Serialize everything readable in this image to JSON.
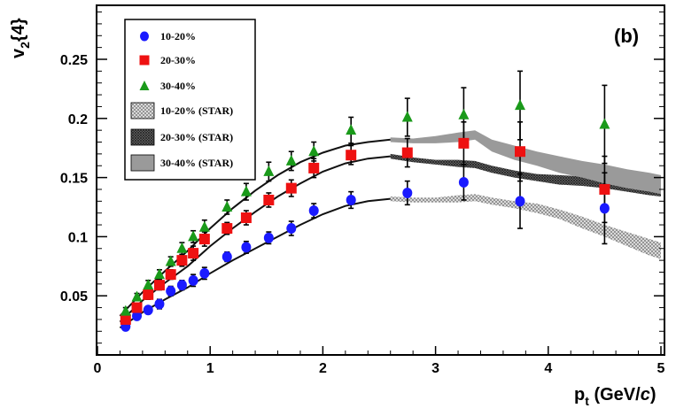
{
  "chart_data": {
    "type": "scatter",
    "panel_label": "(b)",
    "xlabel_main": "p",
    "xlabel_sub": "t",
    "xlabel_unit_pre": " (GeV/",
    "xlabel_unit_italic": "c",
    "xlabel_unit_post": ")",
    "ylabel_main": "v",
    "ylabel_sub": "2",
    "ylabel_post": "{4}",
    "xlim": [
      0,
      5
    ],
    "ylim": [
      0,
      0.3
    ],
    "x_ticks": [
      0,
      1,
      2,
      3,
      4,
      5
    ],
    "y_ticks": [
      0.05,
      0.1,
      0.15,
      0.2,
      0.25
    ],
    "x_tick_labels": [
      "0",
      "1",
      "2",
      "3",
      "4",
      "5"
    ],
    "y_tick_labels": [
      "0.05",
      "0.1",
      "0.15",
      "0.2",
      "0.25"
    ],
    "grid": false,
    "legend_placement": "top-left",
    "series": [
      {
        "name": "10-20%",
        "marker": "circle",
        "color": "#1a1aff",
        "x": [
          0.25,
          0.35,
          0.45,
          0.55,
          0.65,
          0.75,
          0.85,
          0.95,
          1.15,
          1.32,
          1.52,
          1.72,
          1.92,
          2.25,
          2.75,
          3.25,
          3.75,
          4.5
        ],
        "y": [
          0.024,
          0.033,
          0.038,
          0.043,
          0.054,
          0.059,
          0.063,
          0.069,
          0.083,
          0.091,
          0.099,
          0.107,
          0.122,
          0.131,
          0.137,
          0.146,
          0.13,
          0.124
        ],
        "err": [
          0.003,
          0.003,
          0.003,
          0.004,
          0.004,
          0.004,
          0.005,
          0.005,
          0.004,
          0.005,
          0.005,
          0.006,
          0.006,
          0.007,
          0.01,
          0.015,
          0.023,
          0.03
        ]
      },
      {
        "name": "20-30%",
        "marker": "square",
        "color": "#ee1111",
        "x": [
          0.25,
          0.35,
          0.45,
          0.55,
          0.65,
          0.75,
          0.85,
          0.95,
          1.15,
          1.32,
          1.52,
          1.72,
          1.92,
          2.25,
          2.75,
          3.25,
          3.75,
          4.5
        ],
        "y": [
          0.03,
          0.04,
          0.051,
          0.059,
          0.068,
          0.08,
          0.086,
          0.098,
          0.107,
          0.116,
          0.131,
          0.141,
          0.158,
          0.169,
          0.171,
          0.179,
          0.172,
          0.14
        ],
        "err": [
          0.003,
          0.003,
          0.004,
          0.004,
          0.004,
          0.005,
          0.006,
          0.006,
          0.005,
          0.006,
          0.006,
          0.007,
          0.008,
          0.008,
          0.012,
          0.018,
          0.025,
          0.028
        ]
      },
      {
        "name": "30-40%",
        "marker": "triangle",
        "color": "#1a9a1a",
        "x": [
          0.25,
          0.35,
          0.45,
          0.55,
          0.65,
          0.75,
          0.85,
          0.95,
          1.15,
          1.32,
          1.52,
          1.72,
          1.92,
          2.25,
          2.75,
          3.25,
          3.75,
          4.5
        ],
        "y": [
          0.037,
          0.049,
          0.059,
          0.068,
          0.079,
          0.09,
          0.1,
          0.108,
          0.125,
          0.138,
          0.155,
          0.164,
          0.172,
          0.19,
          0.201,
          0.203,
          0.211,
          0.195
        ],
        "err": [
          0.003,
          0.003,
          0.004,
          0.004,
          0.004,
          0.005,
          0.005,
          0.006,
          0.006,
          0.007,
          0.008,
          0.008,
          0.008,
          0.011,
          0.016,
          0.023,
          0.029,
          0.033
        ]
      }
    ],
    "bands": [
      {
        "name": "10-20% (STAR)",
        "fill": "#cccccc",
        "pattern": "crosshatch-light",
        "x": [
          2.6,
          2.8,
          3.0,
          3.2,
          3.35,
          3.5,
          3.7,
          3.9,
          4.1,
          4.3,
          4.5,
          4.7,
          4.9,
          5.0
        ],
        "y": [
          0.132,
          0.131,
          0.131,
          0.132,
          0.133,
          0.13,
          0.127,
          0.124,
          0.119,
          0.112,
          0.105,
          0.098,
          0.091,
          0.088
        ],
        "half_width": [
          0.002,
          0.002,
          0.002,
          0.003,
          0.003,
          0.003,
          0.003,
          0.004,
          0.004,
          0.005,
          0.005,
          0.006,
          0.007,
          0.007
        ]
      },
      {
        "name": "20-30% (STAR)",
        "fill": "#888888",
        "pattern": "crosshatch-dark",
        "x": [
          2.6,
          2.8,
          3.0,
          3.2,
          3.35,
          3.5,
          3.7,
          3.9,
          4.1,
          4.3,
          4.5,
          4.7,
          4.9,
          5.0
        ],
        "y": [
          0.168,
          0.165,
          0.163,
          0.162,
          0.161,
          0.157,
          0.153,
          0.15,
          0.148,
          0.147,
          0.145,
          0.143,
          0.14,
          0.139
        ],
        "half_width": [
          0.002,
          0.002,
          0.002,
          0.003,
          0.003,
          0.003,
          0.003,
          0.003,
          0.004,
          0.004,
          0.004,
          0.005,
          0.005,
          0.005
        ]
      },
      {
        "name": "30-40% (STAR)",
        "fill": "#999999",
        "pattern": "solid",
        "x": [
          2.6,
          2.8,
          3.0,
          3.2,
          3.35,
          3.5,
          3.7,
          3.9,
          4.1,
          4.3,
          4.5,
          4.7,
          4.9,
          5.0
        ],
        "y": [
          0.182,
          0.181,
          0.182,
          0.184,
          0.186,
          0.177,
          0.171,
          0.166,
          0.161,
          0.157,
          0.153,
          0.149,
          0.146,
          0.144
        ],
        "half_width": [
          0.002,
          0.002,
          0.003,
          0.004,
          0.004,
          0.005,
          0.006,
          0.006,
          0.007,
          0.007,
          0.008,
          0.008,
          0.008,
          0.008
        ]
      }
    ],
    "curves": [
      {
        "for": "10-20%",
        "x": [
          0.2,
          0.4,
          0.6,
          0.8,
          1.0,
          1.2,
          1.4,
          1.6,
          1.8,
          2.0,
          2.2,
          2.4,
          2.6
        ],
        "y": [
          0.023,
          0.036,
          0.047,
          0.057,
          0.069,
          0.08,
          0.09,
          0.1,
          0.11,
          0.119,
          0.126,
          0.13,
          0.132
        ]
      },
      {
        "for": "20-30%",
        "x": [
          0.2,
          0.4,
          0.6,
          0.8,
          1.0,
          1.2,
          1.4,
          1.6,
          1.8,
          2.0,
          2.2,
          2.4,
          2.6
        ],
        "y": [
          0.028,
          0.046,
          0.061,
          0.075,
          0.092,
          0.107,
          0.121,
          0.134,
          0.145,
          0.155,
          0.162,
          0.166,
          0.168
        ]
      },
      {
        "for": "30-40%",
        "x": [
          0.2,
          0.4,
          0.6,
          0.8,
          1.0,
          1.2,
          1.4,
          1.6,
          1.8,
          2.0,
          2.2,
          2.4,
          2.6
        ],
        "y": [
          0.033,
          0.053,
          0.071,
          0.088,
          0.107,
          0.124,
          0.139,
          0.152,
          0.163,
          0.171,
          0.177,
          0.18,
          0.182
        ]
      }
    ],
    "legend": [
      {
        "label": "10-20%",
        "kind": "circle",
        "color": "#1a1aff"
      },
      {
        "label": "20-30%",
        "kind": "square",
        "color": "#ee1111"
      },
      {
        "label": "30-40%",
        "kind": "triangle",
        "color": "#1a9a1a"
      },
      {
        "label": "10-20% (STAR)",
        "kind": "band-light"
      },
      {
        "label": "20-30% (STAR)",
        "kind": "band-dark"
      },
      {
        "label": "30-40% (STAR)",
        "kind": "band-solid"
      }
    ]
  }
}
